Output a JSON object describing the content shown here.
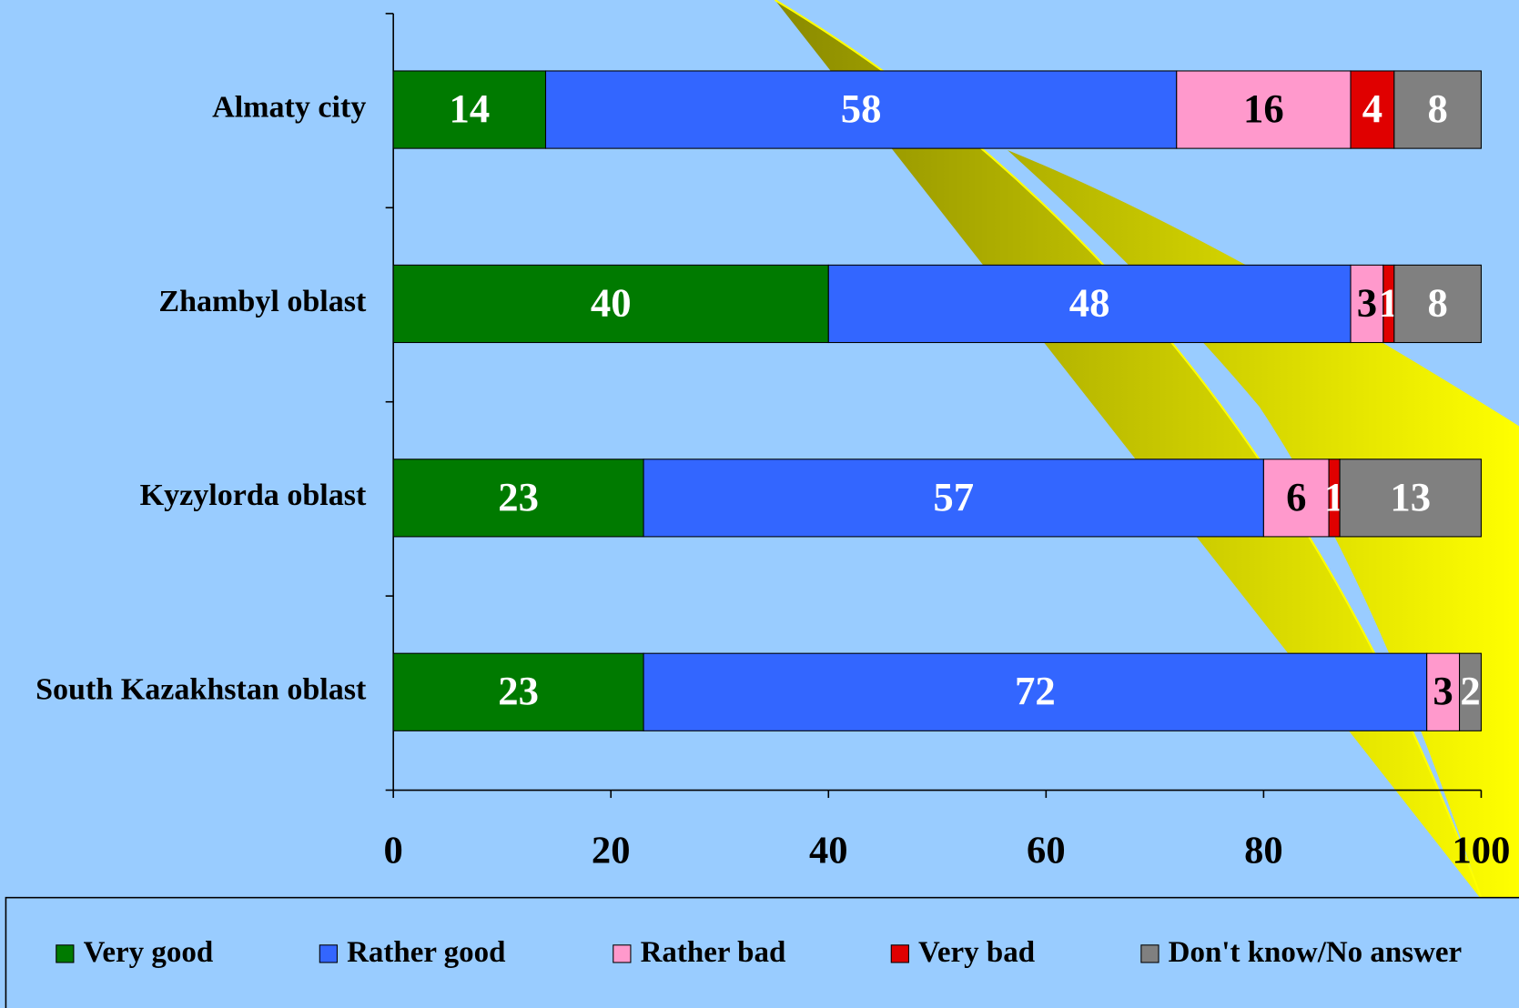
{
  "chart_data": {
    "type": "stacked-bar-horizontal",
    "categories": [
      "Almaty city",
      "Zhambyl oblast",
      "Kyzylorda oblast",
      "South Kazakhstan oblast"
    ],
    "series": [
      {
        "name": "Very good",
        "color": "#007a00",
        "label_color": "#ffffff",
        "values": [
          14,
          40,
          23,
          23
        ]
      },
      {
        "name": "Rather good",
        "color": "#3366ff",
        "label_color": "#ffffff",
        "values": [
          58,
          48,
          57,
          72
        ]
      },
      {
        "name": "Rather bad",
        "color": "#ff99cc",
        "label_color": "#000000",
        "values": [
          16,
          3,
          6,
          3
        ]
      },
      {
        "name": "Very bad",
        "color": "#e00000",
        "label_color": "#ffffff",
        "values": [
          4,
          1,
          1,
          null
        ]
      },
      {
        "name": "Don't know/No answer",
        "color": "#808080",
        "label_color": "#ffffff",
        "values": [
          8,
          8,
          13,
          2
        ]
      }
    ],
    "xlim": [
      0,
      100
    ],
    "xticks": [
      0,
      20,
      40,
      60,
      80,
      100
    ],
    "legend": "bottom"
  }
}
